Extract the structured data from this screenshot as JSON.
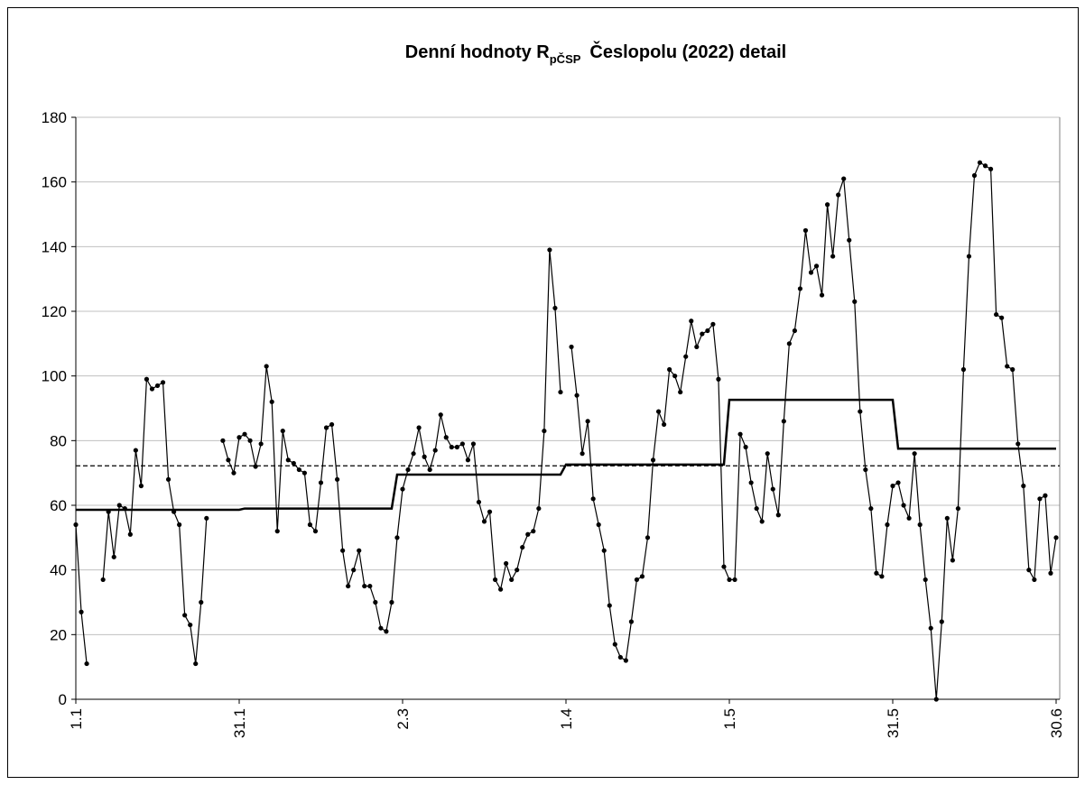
{
  "chart_data": {
    "type": "line",
    "title": "Denní hodnoty R",
    "title_subscript": "pČSP",
    "title_rest": "Česlopolu (2022) detail",
    "categories": [
      "1.1",
      null,
      null,
      null,
      null,
      null,
      null,
      null,
      null,
      null,
      null,
      null,
      null,
      null,
      null,
      null,
      null,
      null,
      null,
      null,
      null,
      null,
      null,
      null,
      null,
      null,
      null,
      null,
      null,
      null,
      "31.1",
      null,
      null,
      null,
      null,
      null,
      null,
      null,
      null,
      null,
      null,
      null,
      null,
      null,
      null,
      null,
      null,
      null,
      null,
      null,
      null,
      null,
      null,
      null,
      null,
      null,
      null,
      null,
      null,
      null,
      "2.3",
      null,
      null,
      null,
      null,
      null,
      null,
      null,
      null,
      null,
      null,
      null,
      null,
      null,
      null,
      null,
      null,
      null,
      null,
      null,
      null,
      null,
      null,
      null,
      null,
      null,
      null,
      null,
      null,
      null,
      "1.4",
      null,
      null,
      null,
      null,
      null,
      null,
      null,
      null,
      null,
      null,
      null,
      null,
      null,
      null,
      null,
      null,
      null,
      null,
      null,
      null,
      null,
      null,
      null,
      null,
      null,
      null,
      null,
      null,
      null,
      "1.5",
      null,
      null,
      null,
      null,
      null,
      null,
      null,
      null,
      null,
      null,
      null,
      null,
      null,
      null,
      null,
      null,
      null,
      null,
      null,
      null,
      null,
      null,
      null,
      null,
      null,
      null,
      null,
      null,
      null,
      "31.5",
      null,
      null,
      null,
      null,
      null,
      null,
      null,
      null,
      null,
      null,
      null,
      null,
      null,
      null,
      null,
      null,
      null,
      null,
      null,
      null,
      null,
      null,
      null,
      null,
      null,
      null,
      null,
      null,
      null,
      "30.6"
    ],
    "series": [
      {
        "color": "#000000",
        "markers": true,
        "values": [
          54,
          27,
          11,
          null,
          null,
          37,
          58,
          44,
          60,
          59,
          51,
          77,
          66,
          99,
          96,
          97,
          98,
          68,
          58,
          54,
          26,
          23,
          11,
          30,
          56,
          null,
          null,
          80,
          74,
          70,
          81,
          82,
          80,
          72,
          79,
          103,
          92,
          52,
          83,
          74,
          73,
          71,
          70,
          54,
          52,
          67,
          84,
          85,
          68,
          46,
          35,
          40,
          46,
          35,
          35,
          30,
          22,
          21,
          30,
          50,
          65,
          71,
          76,
          84,
          75,
          71,
          77,
          88,
          81,
          78,
          78,
          79,
          74,
          79,
          61,
          55,
          58,
          37,
          34,
          42,
          37,
          40,
          47,
          51,
          52,
          59,
          83,
          139,
          121,
          95,
          null,
          109,
          94,
          76,
          86,
          62,
          54,
          46,
          29,
          17,
          13,
          12,
          24,
          37,
          38,
          50,
          74,
          89,
          85,
          102,
          100,
          95,
          106,
          117,
          109,
          113,
          114,
          116,
          99,
          41,
          37,
          37,
          82,
          78,
          67,
          59,
          55,
          76,
          65,
          57,
          86,
          110,
          114,
          127,
          145,
          132,
          134,
          125,
          153,
          137,
          156,
          161,
          142,
          123,
          89,
          71,
          59,
          39,
          38,
          54,
          66,
          67,
          60,
          56,
          76,
          54,
          37,
          22,
          0,
          24,
          56,
          43,
          59,
          102,
          137,
          162,
          166,
          165,
          164,
          119,
          118,
          103,
          102,
          79,
          66,
          40,
          37,
          62,
          63,
          39,
          50
        ]
      },
      {
        "color": "#000000",
        "markers": false,
        "width": 2.5,
        "values": [
          58.6,
          58.6,
          58.6,
          58.6,
          58.6,
          58.6,
          58.6,
          58.6,
          58.6,
          58.6,
          58.6,
          58.6,
          58.6,
          58.6,
          58.6,
          58.6,
          58.6,
          58.6,
          58.6,
          58.6,
          58.6,
          58.6,
          58.6,
          58.6,
          58.6,
          58.6,
          58.6,
          58.6,
          58.6,
          58.6,
          58.6,
          59,
          59,
          59,
          59,
          59,
          59,
          59,
          59,
          59,
          59,
          59,
          59,
          59,
          59,
          59,
          59,
          59,
          59,
          59,
          59,
          59,
          59,
          59,
          59,
          59,
          59,
          59,
          59,
          69.5,
          69.5,
          69.5,
          69.5,
          69.5,
          69.5,
          69.5,
          69.5,
          69.5,
          69.5,
          69.5,
          69.5,
          69.5,
          69.5,
          69.5,
          69.5,
          69.5,
          69.5,
          69.5,
          69.5,
          69.5,
          69.5,
          69.5,
          69.5,
          69.5,
          69.5,
          69.5,
          69.5,
          69.5,
          69.5,
          69.5,
          72.6,
          72.6,
          72.6,
          72.6,
          72.6,
          72.6,
          72.6,
          72.6,
          72.6,
          72.6,
          72.6,
          72.6,
          72.6,
          72.6,
          72.6,
          72.6,
          72.6,
          72.6,
          72.6,
          72.6,
          72.6,
          72.6,
          72.6,
          72.6,
          72.6,
          72.6,
          72.6,
          72.6,
          72.6,
          72.6,
          92.6,
          92.6,
          92.6,
          92.6,
          92.6,
          92.6,
          92.6,
          92.6,
          92.6,
          92.6,
          92.6,
          92.6,
          92.6,
          92.6,
          92.6,
          92.6,
          92.6,
          92.6,
          92.6,
          92.6,
          92.6,
          92.6,
          92.6,
          92.6,
          92.6,
          92.6,
          92.6,
          92.6,
          92.6,
          92.6,
          92.6,
          77.5,
          77.5,
          77.5,
          77.5,
          77.5,
          77.5,
          77.5,
          77.5,
          77.5,
          77.5,
          77.5,
          77.5,
          77.5,
          77.5,
          77.5,
          77.5,
          77.5,
          77.5,
          77.5,
          77.5,
          77.5,
          77.5,
          77.5,
          77.5,
          77.5,
          77.5,
          77.5,
          77.5,
          77.5,
          77.5
        ]
      }
    ],
    "hline": {
      "value": 72.2,
      "color": "#000000",
      "dashed": true
    },
    "ylim": [
      0,
      180
    ],
    "yticks": [
      0,
      20,
      40,
      60,
      80,
      100,
      120,
      140,
      160,
      180
    ],
    "grid": true
  }
}
